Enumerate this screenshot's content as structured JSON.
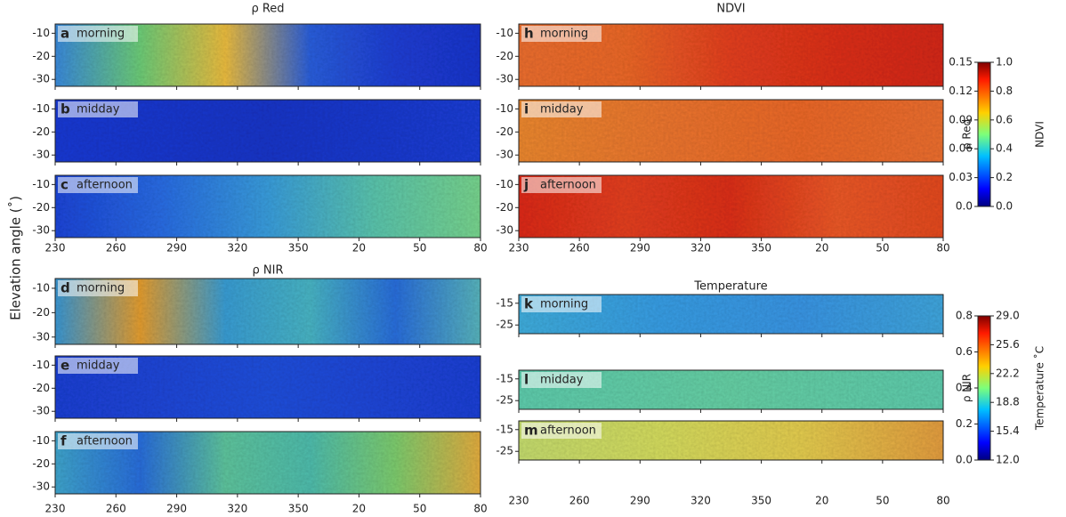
{
  "y_label": "Elevation angle (˚)",
  "chart_data": [
    {
      "type": "heatmap",
      "title": "ρ Red",
      "xlim": [
        230,
        440
      ],
      "xticks": [
        230,
        260,
        290,
        320,
        350,
        {
          "value": 380,
          "label": "20"
        },
        {
          "value": 410,
          "label": "50"
        },
        {
          "value": 440,
          "label": "80"
        }
      ],
      "ylim": [
        -6,
        -33
      ],
      "yticks": [
        -10,
        -20,
        -30
      ],
      "panels": [
        {
          "letter": "a",
          "label": "morning",
          "colors": [
            "#3b8de0",
            "#6fd07a",
            "#f0c040",
            "#2a60e0",
            "#1f3fd8",
            "#1a35d0"
          ]
        },
        {
          "letter": "b",
          "label": "midday",
          "colors": [
            "#1a3ad8",
            "#1a36cc",
            "#1c3ed8"
          ]
        },
        {
          "letter": "c",
          "label": "afternoon",
          "colors": [
            "#1c46dc",
            "#2a6ee8",
            "#3aa0e0",
            "#5cc8b0",
            "#7ad890"
          ]
        }
      ]
    },
    {
      "type": "heatmap",
      "title": "NDVI",
      "xlim": [
        230,
        440
      ],
      "xticks": [
        230,
        260,
        290,
        320,
        350,
        {
          "value": 380,
          "label": "20"
        },
        {
          "value": 410,
          "label": "50"
        },
        {
          "value": 440,
          "label": "80"
        }
      ],
      "ylim": [
        -6,
        -33
      ],
      "yticks": [
        -10,
        -20,
        -30
      ],
      "panels": [
        {
          "letter": "h",
          "label": "morning",
          "colors": [
            "#f07030",
            "#f06a28",
            "#e84020",
            "#e03018",
            "#d82818"
          ]
        },
        {
          "letter": "i",
          "label": "midday",
          "colors": [
            "#f08a30",
            "#f07830",
            "#f06a28",
            "#f07030"
          ]
        },
        {
          "letter": "j",
          "label": "afternoon",
          "colors": [
            "#e02a18",
            "#e84020",
            "#e03018",
            "#f05a28",
            "#e84a20"
          ]
        }
      ]
    },
    {
      "type": "heatmap",
      "title": "ρ NIR",
      "xlim": [
        230,
        440
      ],
      "xticks": [
        230,
        260,
        290,
        320,
        350,
        {
          "value": 380,
          "label": "20"
        },
        {
          "value": 410,
          "label": "50"
        },
        {
          "value": 440,
          "label": "80"
        }
      ],
      "ylim": [
        -6,
        -33
      ],
      "yticks": [
        -10,
        -20,
        -30
      ],
      "panels": [
        {
          "letter": "d",
          "label": "morning",
          "colors": [
            "#3a9ad8",
            "#e8a030",
            "#3aa0d8",
            "#4ab8c8",
            "#2a70e0",
            "#5ab8c0"
          ]
        },
        {
          "letter": "e",
          "label": "midday",
          "colors": [
            "#1c40d8",
            "#2050e0",
            "#1c40d8"
          ]
        },
        {
          "letter": "f",
          "label": "afternoon",
          "colors": [
            "#40a8d0",
            "#2a70e0",
            "#60c8a0",
            "#50c0b0",
            "#80d070",
            "#e8b040"
          ]
        }
      ]
    },
    {
      "type": "heatmap",
      "title": "Temperature",
      "xlim": [
        230,
        440
      ],
      "xticks": [
        230,
        260,
        290,
        320,
        350,
        {
          "value": 380,
          "label": "20"
        },
        {
          "value": 410,
          "label": "50"
        },
        {
          "value": 440,
          "label": "80"
        }
      ],
      "ylim": [
        -11,
        -29
      ],
      "yticks": [
        -15,
        -25
      ],
      "panels": [
        {
          "letter": "k",
          "label": "morning",
          "colors": [
            "#40b0e0",
            "#38a0e8",
            "#3a98e8",
            "#40a8e0"
          ]
        },
        {
          "letter": "l",
          "label": "midday",
          "colors": [
            "#60d0b0",
            "#68d4a8",
            "#60d0b0"
          ]
        },
        {
          "letter": "m",
          "label": "afternoon",
          "colors": [
            "#c8e070",
            "#d8e060",
            "#e8d050",
            "#e8a040"
          ]
        }
      ]
    },
    {
      "type": "colorbar",
      "ylabel": "ρ Red",
      "ylim": [
        0,
        0.15
      ],
      "yticks": [
        {
          "value": 0,
          "label": "0.0"
        },
        0.03,
        0.06,
        0.09,
        0.12,
        0.15
      ],
      "y2label": "NDVI",
      "y2lim": [
        0,
        1
      ],
      "y2ticks": [
        {
          "value": 0,
          "label": "0.0"
        },
        0.2,
        0.4,
        0.6,
        0.8,
        {
          "value": 1,
          "label": "1.0"
        }
      ]
    },
    {
      "type": "colorbar",
      "ylabel": "ρ NIR",
      "ylim": [
        0,
        0.8
      ],
      "yticks": [
        {
          "value": 0,
          "label": "0.0"
        },
        0.2,
        0.4,
        0.6,
        0.8
      ],
      "y2label": "Temperature ˚C",
      "y2lim": [
        12,
        29
      ],
      "y2ticks": [
        {
          "value": 12,
          "label": "12.0"
        },
        15.4,
        18.8,
        22.2,
        25.6,
        {
          "value": 29,
          "label": "29.0"
        }
      ]
    }
  ]
}
